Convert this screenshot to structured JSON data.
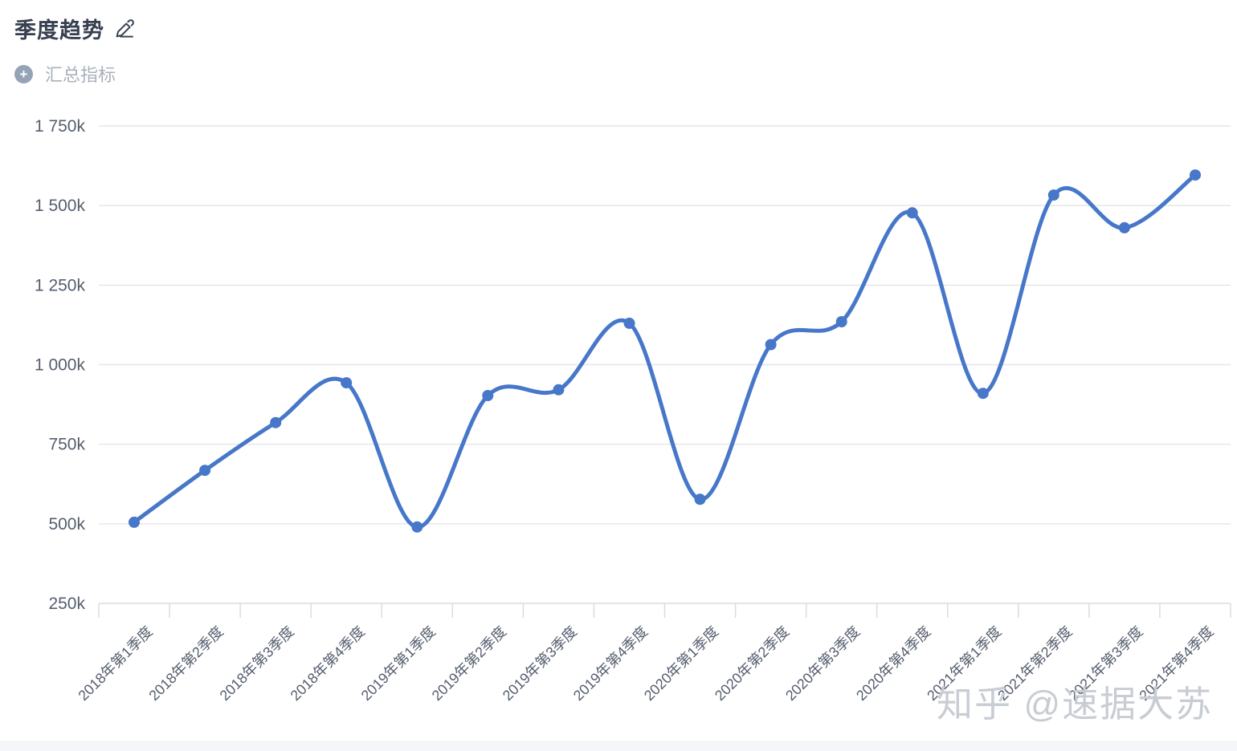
{
  "header": {
    "title": "季度趋势",
    "add_metric_label": "汇总指标",
    "plus_icon_glyph": "+"
  },
  "watermark": {
    "text": "知乎 @速据大苏"
  },
  "chart_data": {
    "type": "line",
    "title": "季度趋势",
    "smooth": true,
    "grid": true,
    "legend_position": "none",
    "x_labels": [
      "2018年第1季度",
      "2018年第2季度",
      "2018年第3季度",
      "2018年第4季度",
      "2019年第1季度",
      "2019年第2季度",
      "2019年第3季度",
      "2019年第4季度",
      "2020年第1季度",
      "2020年第2季度",
      "2020年第3季度",
      "2020年第4季度",
      "2021年第1季度",
      "2021年第2季度",
      "2021年第3季度",
      "2021年第4季度"
    ],
    "values": [
      505000,
      668000,
      818000,
      943000,
      490000,
      903000,
      921000,
      1130000,
      577000,
      1063000,
      1135000,
      1477000,
      910000,
      1533000,
      1430000,
      1596000
    ],
    "ylim": [
      250000,
      1750000
    ],
    "y_ticks": [
      {
        "value": 250000,
        "label": "250k"
      },
      {
        "value": 500000,
        "label": "500k"
      },
      {
        "value": 750000,
        "label": "750k"
      },
      {
        "value": 1000000,
        "label": "1 000k"
      },
      {
        "value": 1250000,
        "label": "1 250k"
      },
      {
        "value": 1500000,
        "label": "1 500k"
      },
      {
        "value": 1750000,
        "label": "1 750k"
      }
    ],
    "colors": {
      "line": "#4677c9",
      "grid": "#e5e6e8",
      "axis": "#d9dce1",
      "tick_label": "#555e6e",
      "title": "#373f50",
      "muted_label": "#a9b1bb",
      "plus_badge": "#95a3b6",
      "watermark": "#c8ccd3",
      "strip": "#f4f6f9"
    }
  }
}
